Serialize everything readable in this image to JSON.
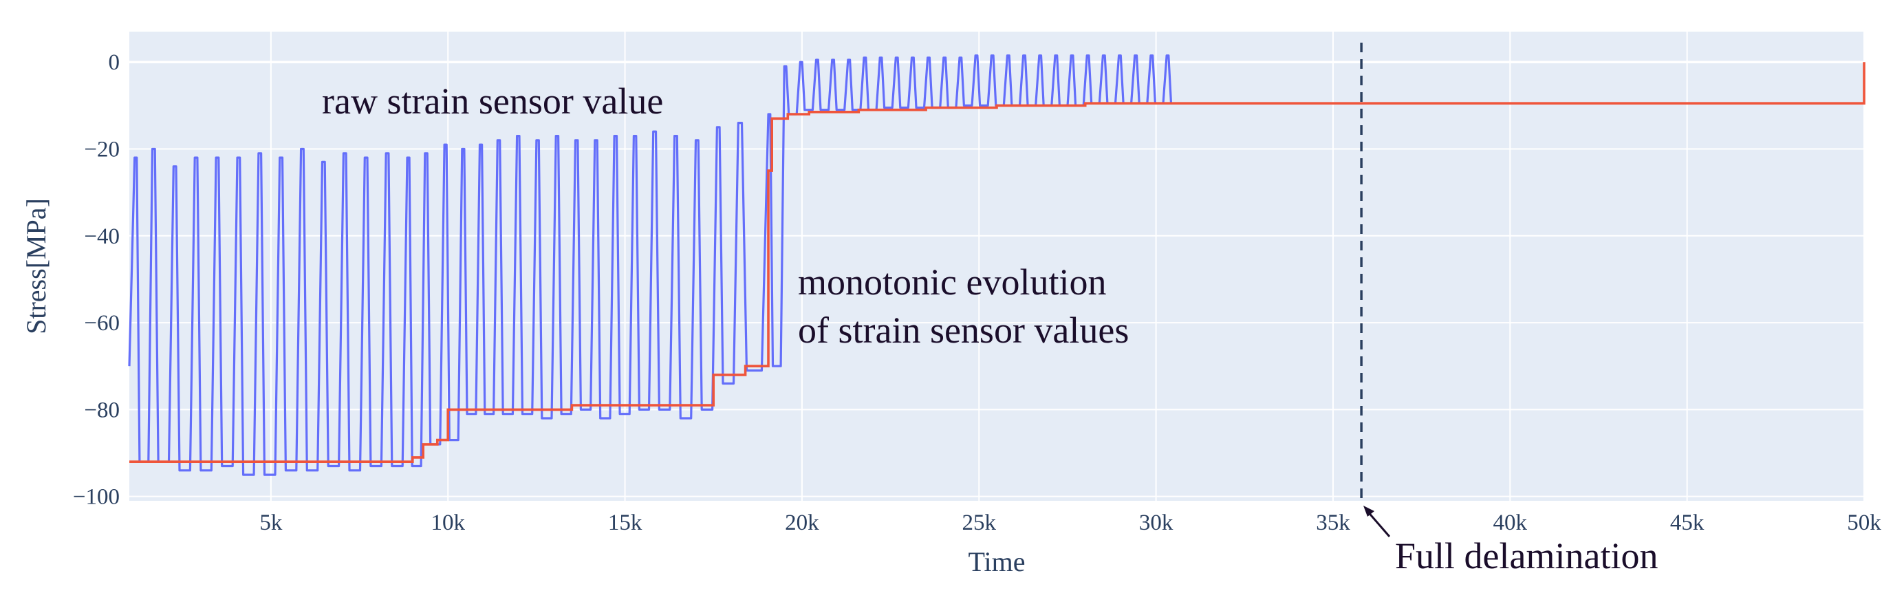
{
  "chart_data": {
    "type": "line",
    "xlabel": "Time",
    "ylabel": "Stress[MPa]",
    "xlim": [
      1000,
      50000
    ],
    "ylim": [
      -101,
      7
    ],
    "x_ticks": [
      5000,
      10000,
      15000,
      20000,
      25000,
      30000,
      35000,
      40000,
      45000,
      50000
    ],
    "x_tick_labels": [
      "5k",
      "10k",
      "15k",
      "20k",
      "25k",
      "30k",
      "35k",
      "40k",
      "45k",
      "50k"
    ],
    "y_ticks": [
      0,
      -20,
      -40,
      -60,
      -80,
      -100
    ],
    "y_tick_labels": [
      "0",
      "−20",
      "−40",
      "−60",
      "−80",
      "−100"
    ],
    "grid": true,
    "colors": {
      "plot_bg": "#e5ecf6",
      "grid": "#ffffff",
      "raw": "#636efa",
      "monotonic": "#ef553b",
      "vline": "#2a3f5f",
      "axis_text": "#2a3f5f"
    },
    "series": [
      {
        "name": "raw strain sensor value",
        "kind": "oscillating",
        "x_start": 1000,
        "x_end": 30500,
        "start_value": -70,
        "cycles": [
          {
            "x": 1150,
            "high": -22,
            "low": -92
          },
          {
            "x": 1650,
            "high": -20,
            "low": -92
          },
          {
            "x": 2250,
            "high": -24,
            "low": -94
          },
          {
            "x": 2850,
            "high": -22,
            "low": -94
          },
          {
            "x": 3450,
            "high": -22,
            "low": -93
          },
          {
            "x": 4050,
            "high": -22,
            "low": -95
          },
          {
            "x": 4650,
            "high": -21,
            "low": -95
          },
          {
            "x": 5250,
            "high": -22,
            "low": -94
          },
          {
            "x": 5850,
            "high": -20,
            "low": -94
          },
          {
            "x": 6450,
            "high": -23,
            "low": -93
          },
          {
            "x": 7050,
            "high": -21,
            "low": -94
          },
          {
            "x": 7650,
            "high": -22,
            "low": -93
          },
          {
            "x": 8250,
            "high": -21,
            "low": -93
          },
          {
            "x": 8850,
            "high": -22,
            "low": -93
          },
          {
            "x": 9350,
            "high": -21,
            "low": -88
          },
          {
            "x": 9900,
            "high": -19,
            "low": -87
          },
          {
            "x": 10400,
            "high": -20,
            "low": -81
          },
          {
            "x": 10900,
            "high": -19,
            "low": -81
          },
          {
            "x": 11400,
            "high": -18,
            "low": -81
          },
          {
            "x": 11950,
            "high": -17,
            "low": -81
          },
          {
            "x": 12500,
            "high": -18,
            "low": -82
          },
          {
            "x": 13050,
            "high": -17,
            "low": -81
          },
          {
            "x": 13600,
            "high": -18,
            "low": -80
          },
          {
            "x": 14150,
            "high": -18,
            "low": -82
          },
          {
            "x": 14700,
            "high": -17,
            "low": -81
          },
          {
            "x": 15250,
            "high": -17,
            "low": -80
          },
          {
            "x": 15800,
            "high": -16,
            "low": -80
          },
          {
            "x": 16400,
            "high": -17,
            "low": -82
          },
          {
            "x": 17000,
            "high": -18,
            "low": -80
          },
          {
            "x": 17600,
            "high": -15,
            "low": -74
          },
          {
            "x": 18200,
            "high": -14,
            "low": -71
          },
          {
            "x": 19050,
            "high": -12,
            "low": -70
          },
          {
            "x": 19500,
            "high": -1,
            "low": -12
          },
          {
            "x": 19950,
            "high": 0,
            "low": -11
          },
          {
            "x": 20400,
            "high": 0.5,
            "low": -11
          },
          {
            "x": 20850,
            "high": 0.5,
            "low": -11
          },
          {
            "x": 21300,
            "high": 0.5,
            "low": -11
          },
          {
            "x": 21750,
            "high": 1,
            "low": -11
          },
          {
            "x": 22200,
            "high": 1,
            "low": -10.5
          },
          {
            "x": 22650,
            "high": 1,
            "low": -10.5
          },
          {
            "x": 23100,
            "high": 1,
            "low": -10.5
          },
          {
            "x": 23550,
            "high": 1,
            "low": -10.5
          },
          {
            "x": 24000,
            "high": 1,
            "low": -10.5
          },
          {
            "x": 24450,
            "high": 1,
            "low": -10
          },
          {
            "x": 24900,
            "high": 1.5,
            "low": -10
          },
          {
            "x": 25350,
            "high": 1.5,
            "low": -10
          },
          {
            "x": 25800,
            "high": 1.5,
            "low": -10
          },
          {
            "x": 26250,
            "high": 1.5,
            "low": -10
          },
          {
            "x": 26700,
            "high": 1.5,
            "low": -10
          },
          {
            "x": 27150,
            "high": 1.5,
            "low": -10
          },
          {
            "x": 27600,
            "high": 1.5,
            "low": -10
          },
          {
            "x": 28050,
            "high": 1.5,
            "low": -9.5
          },
          {
            "x": 28500,
            "high": 1.5,
            "low": -9.5
          },
          {
            "x": 28950,
            "high": 1.5,
            "low": -9.5
          },
          {
            "x": 29400,
            "high": 1.5,
            "low": -9.5
          },
          {
            "x": 29850,
            "high": 1.5,
            "low": -9.5
          },
          {
            "x": 30300,
            "high": 1.5,
            "low": -9.5
          }
        ]
      },
      {
        "name": "monotonic evolution of strain sensor values",
        "kind": "step",
        "x": [
          1000,
          8700,
          9000,
          9300,
          9700,
          10000,
          13500,
          17400,
          17500,
          18400,
          19000,
          19050,
          19150,
          19600,
          20200,
          21600,
          23500,
          25500,
          28000,
          30500,
          50000
        ],
        "y": [
          -92,
          -92,
          -91,
          -88,
          -87,
          -80,
          -79,
          -79,
          -72,
          -70,
          -70,
          -25,
          -13,
          -12,
          -11.5,
          -11,
          -10.5,
          -10,
          -9.5,
          -9.5,
          0
        ]
      }
    ],
    "vlines": [
      {
        "x": 35800,
        "style": "dash"
      }
    ],
    "annotations": {
      "raw_label": "raw strain sensor value",
      "mono_label_line1": "monotonic evolution",
      "mono_label_line2": "of strain sensor values",
      "delam_label": "Full delamination"
    }
  }
}
